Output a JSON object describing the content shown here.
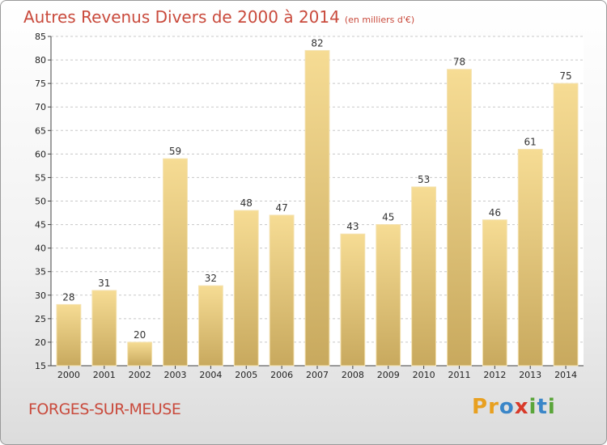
{
  "title": "Autres Revenus Divers de 2000 à 2014",
  "unit": "(en milliers d'€)",
  "commune": "FORGES-SUR-MEUSE",
  "logo": [
    "P",
    "r",
    "o",
    "x",
    "i",
    "t",
    "i"
  ],
  "colors": {
    "title": "#c94a3c",
    "bar_top": "#f6dc94",
    "bar_bottom": "#c8a95e",
    "logo": [
      "#e8a020",
      "#e8a020",
      "#3a86c8",
      "#d83a2a",
      "#5aa53a",
      "#3a86c8",
      "#5aa53a"
    ]
  },
  "chart_data": {
    "type": "bar",
    "categories": [
      "2000",
      "2001",
      "2002",
      "2003",
      "2004",
      "2005",
      "2006",
      "2007",
      "2008",
      "2009",
      "2010",
      "2011",
      "2012",
      "2013",
      "2014"
    ],
    "values": [
      28,
      31,
      20,
      59,
      32,
      48,
      47,
      82,
      43,
      45,
      53,
      78,
      46,
      61,
      75
    ],
    "ylim": [
      15,
      85
    ],
    "yticks": [
      15,
      20,
      25,
      30,
      35,
      40,
      45,
      50,
      55,
      60,
      65,
      70,
      75,
      80,
      85
    ],
    "grid": "horizontal-dashed",
    "legend": "none"
  }
}
